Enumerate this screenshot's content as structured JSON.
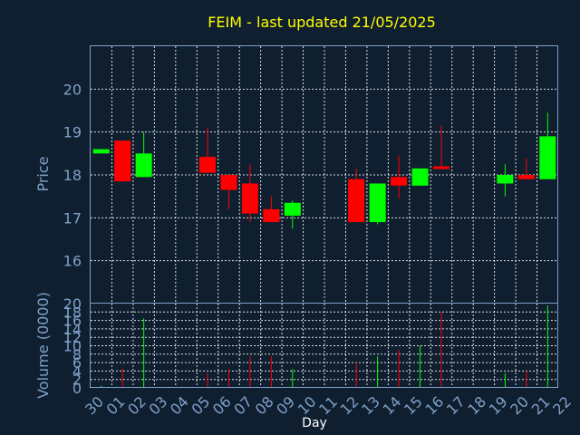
{
  "chart_data": {
    "type": "candlestick",
    "title": "FEIM - last updated 21/05/2025",
    "xlabel": "Day",
    "price_panel": {
      "ylabel": "Price",
      "ylim": [
        15,
        21
      ],
      "yticks": [
        16,
        17,
        18,
        19,
        20
      ]
    },
    "volume_panel": {
      "ylabel": "Volume (0000)",
      "ylim": [
        0,
        20
      ],
      "yticks": [
        0,
        2,
        4,
        6,
        8,
        10,
        12,
        14,
        16,
        18,
        20
      ]
    },
    "x_tick_labels": [
      "30",
      "01",
      "02",
      "03",
      "04",
      "05",
      "06",
      "07",
      "08",
      "09",
      "10",
      "11",
      "12",
      "13",
      "14",
      "15",
      "16",
      "17",
      "18",
      "19",
      "20",
      "21",
      "22"
    ],
    "up_color": "#00ff00",
    "down_color": "#ff0000",
    "candles": [
      {
        "day": "30",
        "open": 18.5,
        "high": 18.6,
        "low": 18.5,
        "close": 18.6,
        "volume": 0.5
      },
      {
        "day": "01",
        "open": 18.8,
        "high": 18.8,
        "low": 17.85,
        "close": 17.85,
        "volume": 4.5
      },
      {
        "day": "02",
        "open": 17.95,
        "high": 19.0,
        "low": 17.95,
        "close": 18.5,
        "volume": 16.5
      },
      {
        "day": "05",
        "open": 18.42,
        "high": 19.1,
        "low": 18.05,
        "close": 18.05,
        "volume": 3.5
      },
      {
        "day": "06",
        "open": 18.0,
        "high": 18.0,
        "low": 17.2,
        "close": 17.65,
        "volume": 4.5
      },
      {
        "day": "07",
        "open": 17.8,
        "high": 18.25,
        "low": 16.9,
        "close": 17.1,
        "volume": 7.5
      },
      {
        "day": "08",
        "open": 17.2,
        "high": 17.5,
        "low": 16.9,
        "close": 16.9,
        "volume": 7.5
      },
      {
        "day": "09",
        "open": 17.05,
        "high": 17.4,
        "low": 16.75,
        "close": 17.35,
        "volume": 4.5
      },
      {
        "day": "12",
        "open": 17.9,
        "high": 18.15,
        "low": 16.9,
        "close": 16.9,
        "volume": 6.0
      },
      {
        "day": "13",
        "open": 16.9,
        "high": 17.8,
        "low": 16.85,
        "close": 17.8,
        "volume": 7.5
      },
      {
        "day": "14",
        "open": 17.95,
        "high": 18.45,
        "low": 17.45,
        "close": 17.75,
        "volume": 9.0
      },
      {
        "day": "15",
        "open": 17.75,
        "high": 18.15,
        "low": 17.75,
        "close": 18.15,
        "volume": 10.0
      },
      {
        "day": "16",
        "open": 18.2,
        "high": 19.15,
        "low": 18.15,
        "close": 18.15,
        "volume": 18.0
      },
      {
        "day": "19",
        "open": 17.8,
        "high": 18.25,
        "low": 17.5,
        "close": 18.0,
        "volume": 3.5
      },
      {
        "day": "20",
        "open": 18.0,
        "high": 18.4,
        "low": 17.9,
        "close": 17.9,
        "volume": 4.0
      },
      {
        "day": "21",
        "open": 17.9,
        "high": 19.45,
        "low": 17.9,
        "close": 18.9,
        "volume": 19.5
      }
    ]
  }
}
